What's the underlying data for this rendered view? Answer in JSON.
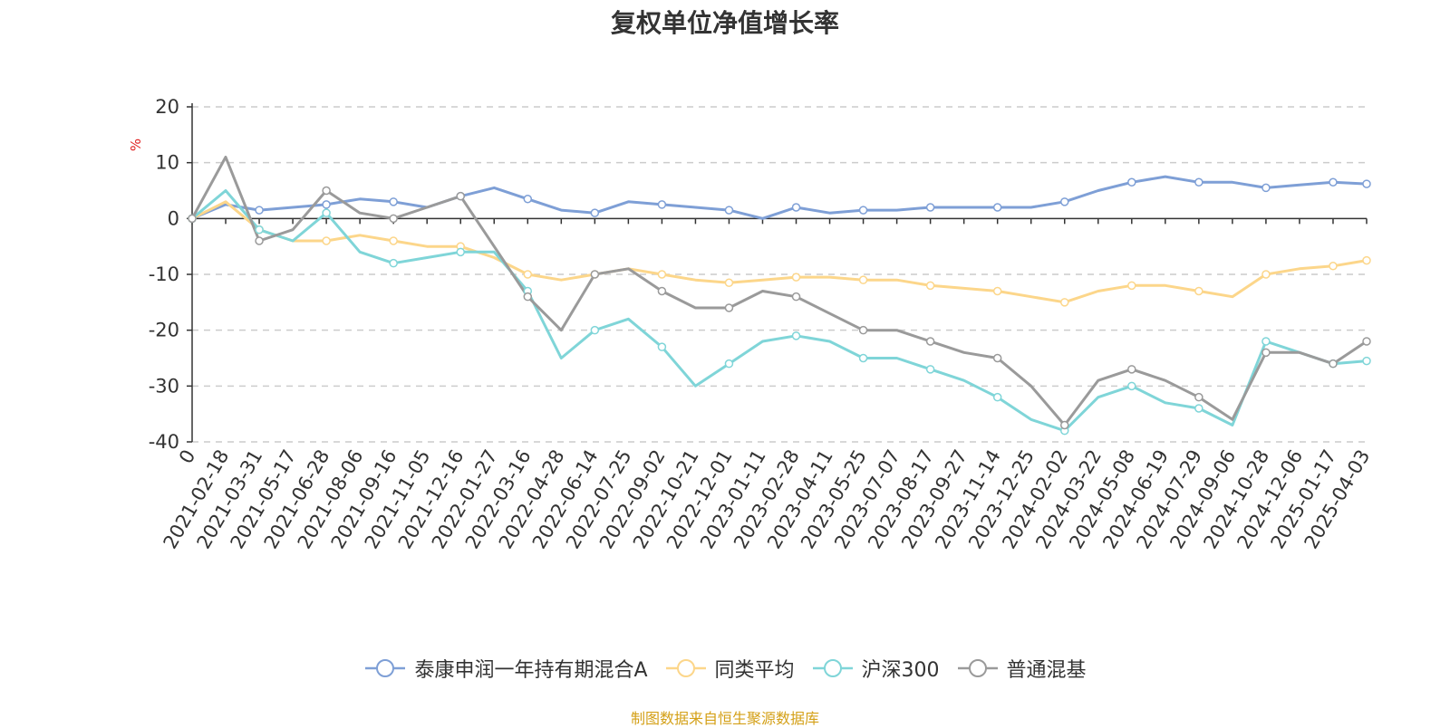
{
  "chart_data": {
    "type": "line",
    "title": "复权单位净值增长率",
    "ylabel": "%",
    "ylim": [
      -40,
      20
    ],
    "yticks": [
      20,
      10,
      0,
      -10,
      -20,
      -30,
      -40
    ],
    "grid": true,
    "legend_position": "bottom",
    "x_tick_labels": [
      "0",
      "2021-02-18",
      "2021-03-31",
      "2021-05-17",
      "2021-06-28",
      "2021-08-06",
      "2021-09-16",
      "2021-11-05",
      "2021-12-16",
      "2022-01-27",
      "2022-03-16",
      "2022-04-28",
      "2022-06-14",
      "2022-07-25",
      "2022-09-02",
      "2022-10-21",
      "2022-12-01",
      "2023-01-11",
      "2023-02-28",
      "2023-04-11",
      "2023-05-25",
      "2023-07-07",
      "2023-08-17",
      "2023-09-27",
      "2023-11-14",
      "2023-12-25",
      "2024-02-02",
      "2024-03-22",
      "2024-05-08",
      "2024-06-19",
      "2024-07-29",
      "2024-09-06",
      "2024-10-28",
      "2024-12-06",
      "2025-01-17",
      "2025-04-03"
    ],
    "series": [
      {
        "name": "泰康申润一年持有期混合A",
        "color": "#7e9fd6",
        "values": [
          0,
          2.5,
          1.5,
          2,
          2.5,
          3.5,
          3,
          2,
          4,
          5.5,
          3.5,
          1.5,
          1,
          3,
          2.5,
          2,
          1.5,
          0,
          2,
          1,
          1.5,
          1.5,
          2,
          2,
          2,
          2,
          3,
          5,
          6.5,
          7.5,
          6.5,
          6.5,
          5.5,
          6,
          6.5,
          6.2
        ]
      },
      {
        "name": "同类平均",
        "color": "#fcd68a",
        "values": [
          0,
          3,
          -2,
          -4,
          -4,
          -3,
          -4,
          -5,
          -5,
          -7,
          -10,
          -11,
          -10,
          -9,
          -10,
          -11,
          -11.5,
          -11,
          -10.5,
          -10.5,
          -11,
          -11,
          -12,
          -12.5,
          -13,
          -14,
          -15,
          -13,
          -12,
          -12,
          -13,
          -14,
          -10,
          -9,
          -8.5,
          -7.5
        ]
      },
      {
        "name": "沪深300",
        "color": "#7fd5d8",
        "values": [
          0,
          5,
          -2,
          -4,
          1,
          -6,
          -8,
          -7,
          -6,
          -6,
          -13,
          -25,
          -20,
          -18,
          -23,
          -30,
          -26,
          -22,
          -21,
          -22,
          -25,
          -25,
          -27,
          -29,
          -32,
          -36,
          -38,
          -32,
          -30,
          -33,
          -34,
          -37,
          -22,
          -24,
          -26,
          -25.5
        ]
      },
      {
        "name": "普通混基",
        "color": "#9a9a9a",
        "values": [
          0,
          11,
          -4,
          -2,
          5,
          1,
          0,
          2,
          4,
          -5,
          -14,
          -20,
          -10,
          -9,
          -13,
          -16,
          -16,
          -13,
          -14,
          -17,
          -20,
          -20,
          -22,
          -24,
          -25,
          -30,
          -37,
          -29,
          -27,
          -29,
          -32,
          -36,
          -24,
          -24,
          -26,
          -22
        ]
      }
    ]
  },
  "source_note": "制图数据来自恒生聚源数据库"
}
